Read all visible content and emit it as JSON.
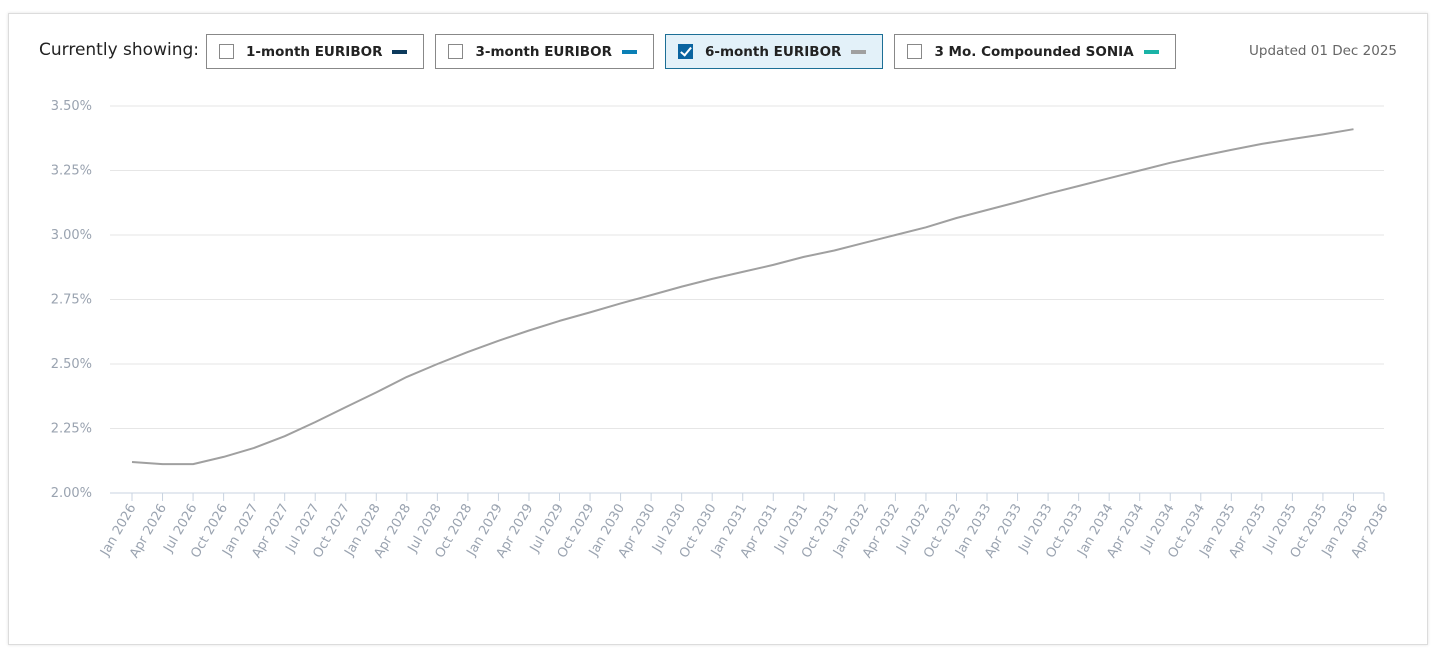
{
  "header": {
    "label": "Currently showing:",
    "updated": "Updated 01 Dec 2025"
  },
  "chart_data": {
    "type": "line",
    "categories": [
      "Jan 2026",
      "Apr 2026",
      "Jul 2026",
      "Oct 2026",
      "Jan 2027",
      "Apr 2027",
      "Jul 2027",
      "Oct 2027",
      "Jan 2028",
      "Apr 2028",
      "Jul 2028",
      "Oct 2028",
      "Jan 2029",
      "Apr 2029",
      "Jul 2029",
      "Oct 2029",
      "Jan 2030",
      "Apr 2030",
      "Jul 2030",
      "Oct 2030",
      "Jan 2031",
      "Apr 2031",
      "Jul 2031",
      "Oct 2031",
      "Jan 2032",
      "Apr 2032",
      "Jul 2032",
      "Oct 2032",
      "Jan 2033",
      "Apr 2033",
      "Jul 2033",
      "Oct 2033",
      "Jan 2034",
      "Apr 2034",
      "Jul 2034",
      "Oct 2034",
      "Jan 2035",
      "Apr 2035",
      "Jul 2035",
      "Oct 2035",
      "Jan 2036",
      "Apr 2036"
    ],
    "series": [
      {
        "name": "1-month EURIBOR",
        "color": "#0d3a5c",
        "visible": false,
        "values": [
          null,
          null,
          null,
          null,
          null,
          null,
          null,
          null,
          null,
          null,
          null,
          null,
          null,
          null,
          null,
          null,
          null,
          null,
          null,
          null,
          null,
          null,
          null,
          null,
          null,
          null,
          null,
          null,
          null,
          null,
          null,
          null,
          null,
          null,
          null,
          null,
          null,
          null,
          null,
          null,
          null,
          null
        ]
      },
      {
        "name": "3-month EURIBOR",
        "color": "#0a7fb5",
        "visible": false,
        "values": [
          null,
          null,
          null,
          null,
          null,
          null,
          null,
          null,
          null,
          null,
          null,
          null,
          null,
          null,
          null,
          null,
          null,
          null,
          null,
          null,
          null,
          null,
          null,
          null,
          null,
          null,
          null,
          null,
          null,
          null,
          null,
          null,
          null,
          null,
          null,
          null,
          null,
          null,
          null,
          null,
          null,
          null
        ]
      },
      {
        "name": "6-month EURIBOR",
        "color": "#a0a0a0",
        "visible": true,
        "values": [
          2.12,
          2.112,
          2.112,
          2.14,
          2.175,
          2.22,
          2.275,
          2.333,
          2.39,
          2.45,
          2.5,
          2.547,
          2.59,
          2.63,
          2.667,
          2.7,
          2.735,
          2.767,
          2.8,
          2.83,
          2.857,
          2.884,
          2.915,
          2.94,
          2.97,
          3.0,
          3.03,
          3.066,
          3.097,
          3.128,
          3.16,
          3.19,
          3.22,
          3.25,
          3.28,
          3.306,
          3.33,
          3.353,
          3.372,
          3.39,
          3.41,
          null
        ]
      },
      {
        "name": "3 Mo. Compounded SONIA",
        "color": "#1ab3a6",
        "visible": false,
        "values": [
          null,
          null,
          null,
          null,
          null,
          null,
          null,
          null,
          null,
          null,
          null,
          null,
          null,
          null,
          null,
          null,
          null,
          null,
          null,
          null,
          null,
          null,
          null,
          null,
          null,
          null,
          null,
          null,
          null,
          null,
          null,
          null,
          null,
          null,
          null,
          null,
          null,
          null,
          null,
          null,
          null,
          null
        ]
      }
    ],
    "ylim": [
      2.0,
      3.5
    ],
    "yticks": [
      {
        "value": 2.0,
        "label": "2.00%"
      },
      {
        "value": 2.25,
        "label": "2.25%"
      },
      {
        "value": 2.5,
        "label": "2.50%"
      },
      {
        "value": 2.75,
        "label": "2.75%"
      },
      {
        "value": 3.0,
        "label": "3.00%"
      },
      {
        "value": 3.25,
        "label": "3.25%"
      },
      {
        "value": 3.5,
        "label": "3.50%"
      }
    ],
    "grid": true
  }
}
